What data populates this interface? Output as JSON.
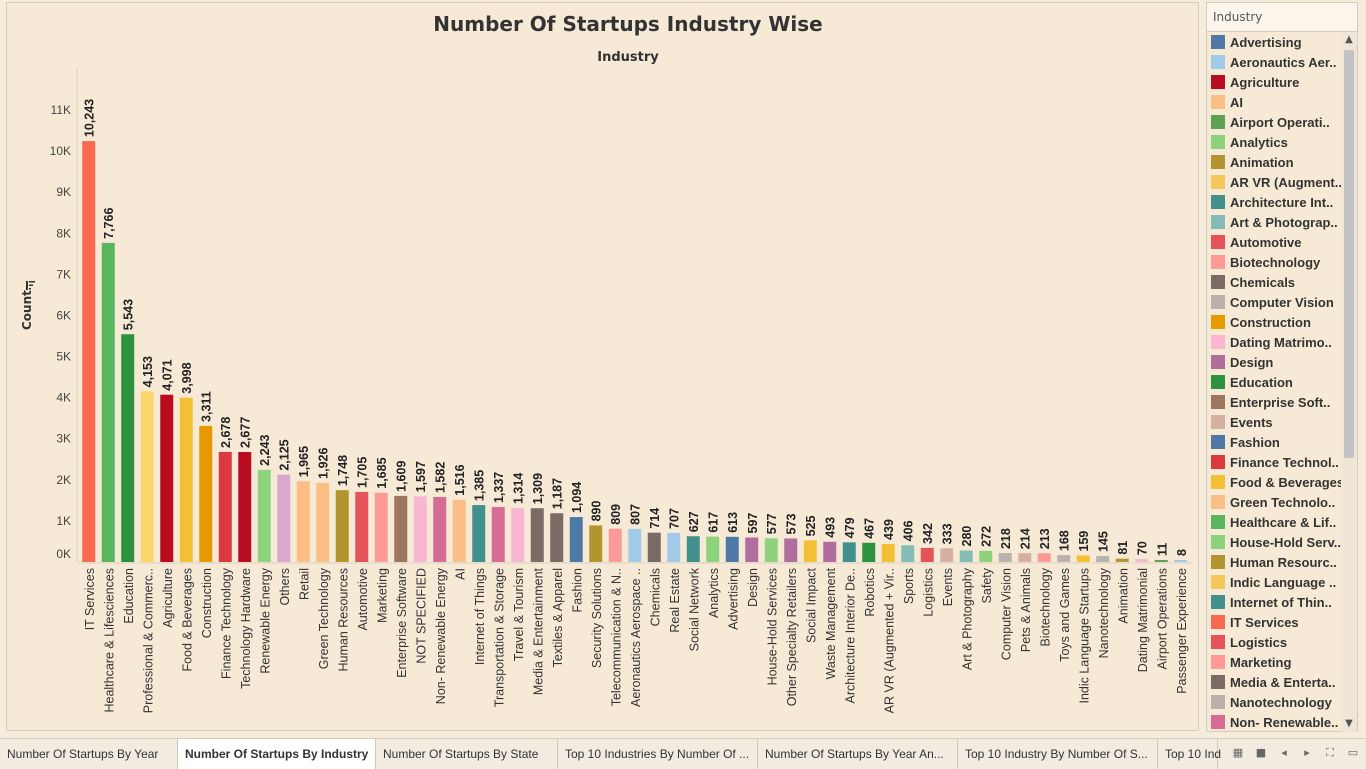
{
  "chart_title": "Number Of Startups  Industry Wise",
  "axis_header": "Industry",
  "ylabel": "Count",
  "chart_data": {
    "type": "bar",
    "title": "Number Of Startups  Industry Wise",
    "xlabel": "Industry",
    "ylabel": "Count",
    "ylim": [
      0,
      11500
    ],
    "yticks": [
      "0K",
      "1K",
      "2K",
      "3K",
      "4K",
      "5K",
      "6K",
      "7K",
      "8K",
      "9K",
      "10K",
      "11K"
    ],
    "grid": false,
    "categories": [
      "IT Services",
      "Healthcare & Lifesciences",
      "Education",
      "Professional & Commerc..",
      "Agriculture",
      "Food & Beverages",
      "Construction",
      "Finance Technology",
      "Technology Hardware",
      "Renewable Energy",
      "Others",
      "Retail",
      "Green Technology",
      "Human Resources",
      "Automotive",
      "Marketing",
      "Enterprise Software",
      "NOT SPECIFIED",
      "Non- Renewable Energy",
      "AI",
      "Internet of Things",
      "Transportation & Storage",
      "Travel & Tourism",
      "Media & Entertainment",
      "Textiles & Apparel",
      "Fashion",
      "Security Solutions",
      "Telecommunication & N..",
      "Aeronautics Aerospace ..",
      "Chemicals",
      "Real Estate",
      "Social Network",
      "Analytics",
      "Advertising",
      "Design",
      "House-Hold Services",
      "Other Specialty Retailers",
      "Social Impact",
      "Waste Management",
      "Architecture Interior De..",
      "Robotics",
      "AR VR (Augmented + Vir..",
      "Sports",
      "Logistics",
      "Events",
      "Art & Photography",
      "Safety",
      "Computer Vision",
      "Pets & Animals",
      "Biotechnology",
      "Toys and Games",
      "Indic Language Startups",
      "Nanotechnology",
      "Animation",
      "Dating Matrimonial",
      "Airport Operations",
      "Passenger Experience"
    ],
    "values": [
      10243,
      7766,
      5543,
      4153,
      4071,
      3998,
      3311,
      2678,
      2677,
      2243,
      2125,
      1965,
      1926,
      1748,
      1705,
      1685,
      1609,
      1597,
      1582,
      1516,
      1385,
      1337,
      1314,
      1309,
      1187,
      1094,
      890,
      809,
      807,
      714,
      707,
      627,
      617,
      613,
      597,
      577,
      573,
      525,
      493,
      479,
      467,
      439,
      406,
      342,
      333,
      280,
      272,
      218,
      214,
      213,
      168,
      159,
      145,
      81,
      70,
      11,
      8
    ],
    "labels": [
      "10,243",
      "7,766",
      "5,543",
      "4,153",
      "4,071",
      "3,998",
      "3,311",
      "2,678",
      "2,677",
      "2,243",
      "2,125",
      "1,965",
      "1,926",
      "1,748",
      "1,705",
      "1,685",
      "1,609",
      "1,597",
      "1,582",
      "1,516",
      "1,385",
      "1,337",
      "1,314",
      "1,309",
      "1,187",
      "1,094",
      "890",
      "809",
      "807",
      "714",
      "707",
      "627",
      "617",
      "613",
      "597",
      "577",
      "573",
      "525",
      "493",
      "479",
      "467",
      "439",
      "406",
      "342",
      "333",
      "280",
      "272",
      "218",
      "214",
      "213",
      "168",
      "159",
      "145",
      "81",
      "70",
      "11",
      "8"
    ],
    "colors": [
      "#f8694f",
      "#59b55e",
      "#2e9140",
      "#fdd56d",
      "#b90c21",
      "#f4c033",
      "#e79a00",
      "#da3a3f",
      "#b90c21",
      "#8ed37c",
      "#d8a8ce",
      "#fbbf85",
      "#fbbf85",
      "#b2952f",
      "#e5535a",
      "#fd9a98",
      "#9d7660",
      "#f8b6d1",
      "#d66b94",
      "#fbbf85",
      "#41908b",
      "#d66b94",
      "#f8b6d1",
      "#7a6b65",
      "#7a6b65",
      "#4e79a7",
      "#b2952f",
      "#fd9a98",
      "#a1c9e8",
      "#7a6b65",
      "#a1c9e8",
      "#41908b",
      "#8ed37c",
      "#4e79a7",
      "#b06e9f",
      "#8ed37c",
      "#b06e9f",
      "#f4c033",
      "#b06e9f",
      "#41908b",
      "#2e9140",
      "#f4c033",
      "#86bcb6",
      "#e5535a",
      "#d6b0a0",
      "#86bcb6",
      "#8ed37c",
      "#bab0ac",
      "#d6b0a0",
      "#fd9a98",
      "#bab0ac",
      "#f4c033",
      "#bab0ac",
      "#b2952f",
      "#f8b6d1",
      "#5fa053",
      "#a1c9e8"
    ]
  },
  "legend": {
    "title": "Industry",
    "items": [
      {
        "label": "Advertising",
        "color": "#4e79a7"
      },
      {
        "label": "Aeronautics Aer..",
        "color": "#a1c9e8"
      },
      {
        "label": "Agriculture",
        "color": "#b90c21"
      },
      {
        "label": "AI",
        "color": "#fbbf85"
      },
      {
        "label": "Airport Operati..",
        "color": "#5fa053"
      },
      {
        "label": "Analytics",
        "color": "#8ed37c"
      },
      {
        "label": "Animation",
        "color": "#b2952f"
      },
      {
        "label": "AR VR (Augment..",
        "color": "#f4c75a"
      },
      {
        "label": "Architecture Int..",
        "color": "#41908b"
      },
      {
        "label": "Art & Photograp..",
        "color": "#86bcb6"
      },
      {
        "label": "Automotive",
        "color": "#e5535a"
      },
      {
        "label": "Biotechnology",
        "color": "#fd9a98"
      },
      {
        "label": "Chemicals",
        "color": "#7a6b65"
      },
      {
        "label": "Computer Vision",
        "color": "#bab0ac"
      },
      {
        "label": "Construction",
        "color": "#e79a00"
      },
      {
        "label": "Dating Matrimo..",
        "color": "#f8b6d1"
      },
      {
        "label": "Design",
        "color": "#b06e9f"
      },
      {
        "label": "Education",
        "color": "#2e9140"
      },
      {
        "label": "Enterprise Soft..",
        "color": "#9d7660"
      },
      {
        "label": "Events",
        "color": "#d6b0a0"
      },
      {
        "label": "Fashion",
        "color": "#4e79a7"
      },
      {
        "label": "Finance Technol..",
        "color": "#da3a3f"
      },
      {
        "label": "Food & Beverages",
        "color": "#f4c033"
      },
      {
        "label": "Green Technolo..",
        "color": "#fbbf85"
      },
      {
        "label": "Healthcare & Lif..",
        "color": "#59b55e"
      },
      {
        "label": "House-Hold Serv..",
        "color": "#8ed37c"
      },
      {
        "label": "Human Resourc..",
        "color": "#b2952f"
      },
      {
        "label": "Indic Language ..",
        "color": "#f4c75a"
      },
      {
        "label": "Internet of Thin..",
        "color": "#41908b"
      },
      {
        "label": "IT Services",
        "color": "#f8694f"
      },
      {
        "label": "Logistics",
        "color": "#e5535a"
      },
      {
        "label": "Marketing",
        "color": "#fd9a98"
      },
      {
        "label": "Media & Enterta..",
        "color": "#7a6b65"
      },
      {
        "label": "Nanotechnology",
        "color": "#bab0ac"
      },
      {
        "label": "Non- Renewable..",
        "color": "#d66b94"
      }
    ]
  },
  "tabs": [
    {
      "label": "Number Of Startups By Year",
      "active": false
    },
    {
      "label": "Number Of Startups By Industry",
      "active": true
    },
    {
      "label": "Number Of Startups By State",
      "active": false
    },
    {
      "label": "Top 10 Industries By Number Of ...",
      "active": false
    },
    {
      "label": "Number Of Startups By Year An...",
      "active": false
    },
    {
      "label": "Top 10 Industry By Number Of S...",
      "active": false
    },
    {
      "label": "Top 10 Ind",
      "active": false
    }
  ],
  "icons": {
    "sort": "sort-icon",
    "grid": "grid-view-icon",
    "square": "single-view-icon",
    "prev": "prev-sheet-icon",
    "next": "next-sheet-icon",
    "fullscreen": "fullscreen-icon",
    "present": "presentation-icon"
  }
}
